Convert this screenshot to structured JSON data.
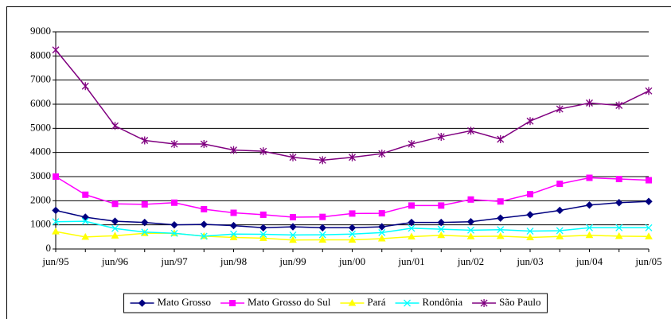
{
  "chart_data": {
    "type": "line",
    "categories": [
      "jun/95",
      null,
      "jun/96",
      null,
      "jun/97",
      null,
      "jun/98",
      null,
      "jun/99",
      null,
      "jun/00",
      null,
      "jun/01",
      null,
      "jun/02",
      null,
      "jun/03",
      null,
      "jun/04",
      null,
      "jun/05"
    ],
    "ylim": [
      0,
      9000
    ],
    "yticks": [
      0,
      1000,
      2000,
      3000,
      4000,
      5000,
      6000,
      7000,
      8000,
      9000
    ],
    "grid": true,
    "legend": "bottom",
    "series": [
      {
        "name": "Mato Grosso",
        "color": "#000080",
        "marker": "diamond",
        "values": [
          1600,
          1320,
          1150,
          1100,
          1000,
          1020,
          970,
          880,
          920,
          880,
          880,
          920,
          1100,
          1100,
          1130,
          1280,
          1420,
          1600,
          1820,
          1920,
          1970
        ]
      },
      {
        "name": "Mato Grosso do Sul",
        "color": "#FF00FF",
        "marker": "square",
        "values": [
          3000,
          2250,
          1870,
          1850,
          1920,
          1650,
          1500,
          1420,
          1320,
          1330,
          1470,
          1480,
          1800,
          1800,
          2050,
          1970,
          2270,
          2700,
          2950,
          2900,
          2850
        ]
      },
      {
        "name": "Pará",
        "color": "#FFFF00",
        "marker": "triangle",
        "values": [
          720,
          500,
          550,
          650,
          650,
          530,
          480,
          450,
          370,
          380,
          380,
          430,
          510,
          570,
          520,
          530,
          480,
          520,
          570,
          530,
          520
        ]
      },
      {
        "name": "Rondônia",
        "color": "#00FFFF",
        "marker": "x",
        "values": [
          1130,
          1150,
          850,
          700,
          650,
          530,
          620,
          610,
          580,
          590,
          620,
          680,
          860,
          820,
          780,
          800,
          740,
          760,
          880,
          880,
          880
        ]
      },
      {
        "name": "São Paulo",
        "color": "#800080",
        "marker": "star",
        "values": [
          8250,
          6750,
          5100,
          4500,
          4350,
          4350,
          4100,
          4050,
          3800,
          3680,
          3800,
          3950,
          4350,
          4650,
          4900,
          4550,
          5300,
          5800,
          6050,
          5950,
          6550
        ]
      }
    ]
  }
}
